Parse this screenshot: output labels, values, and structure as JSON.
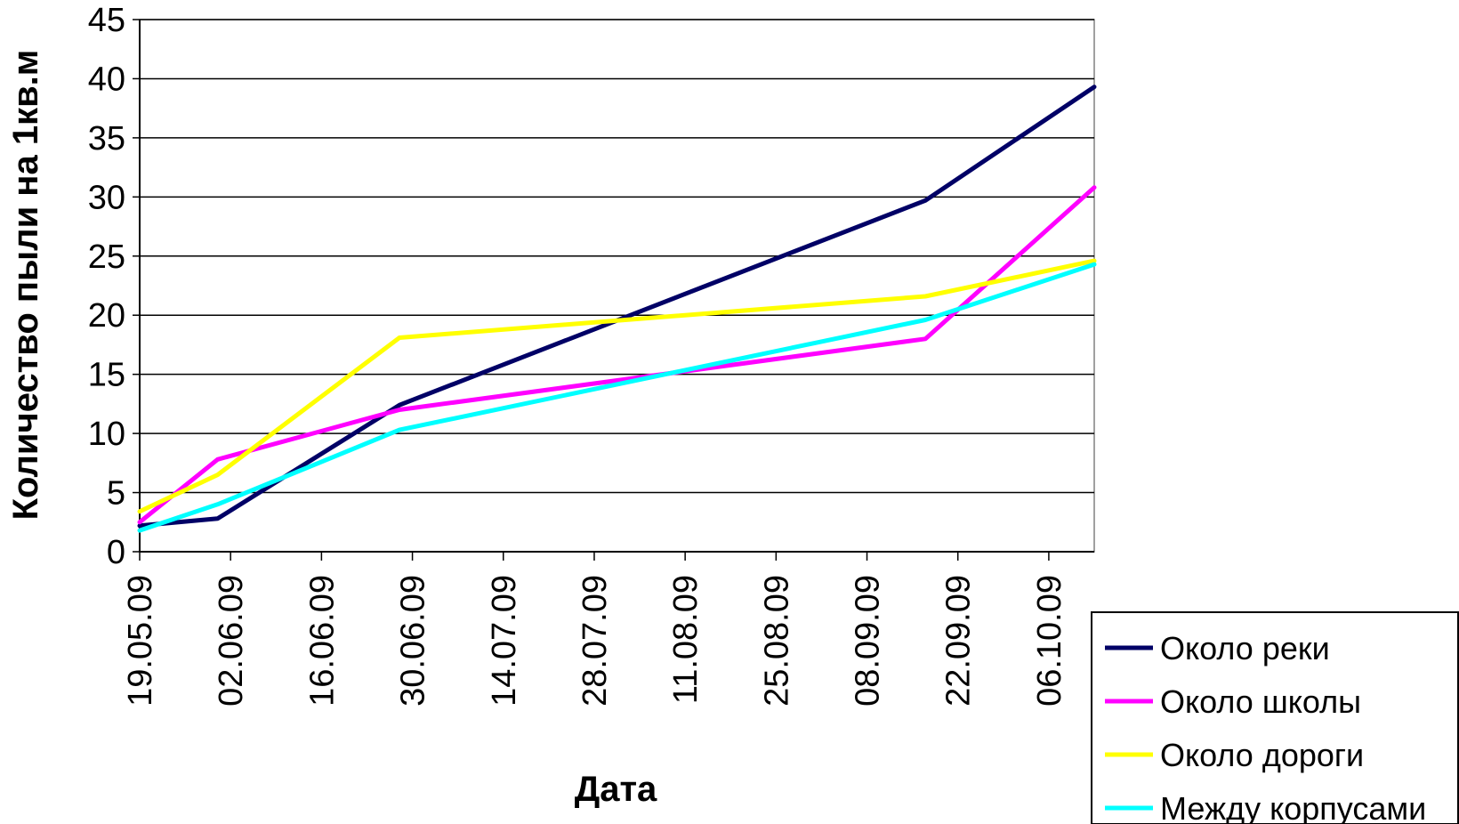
{
  "chart_data": {
    "type": "line",
    "xlabel": "Дата",
    "ylabel": "Количество пыли на 1кв.м",
    "x_ticks": [
      "19.05.09",
      "02.06.09",
      "16.06.09",
      "30.06.09",
      "14.07.09",
      "28.07.09",
      "11.08.09",
      "25.08.09",
      "08.09.09",
      "22.09.09",
      "06.10.09"
    ],
    "x_range": [
      "2009-05-19",
      "2009-10-13"
    ],
    "ylim": [
      0,
      45
    ],
    "y_ticks": [
      0,
      5,
      10,
      15,
      20,
      25,
      30,
      35,
      40,
      45
    ],
    "grid": "horizontal",
    "legend_position": "bottom-right",
    "series": [
      {
        "name": "Около реки",
        "color": "#000066",
        "points": [
          [
            "2009-05-19",
            2.2
          ],
          [
            "2009-05-31",
            2.8
          ],
          [
            "2009-06-28",
            12.4
          ],
          [
            "2009-09-17",
            29.7
          ],
          [
            "2009-10-13",
            39.3
          ]
        ]
      },
      {
        "name": "Около школы",
        "color": "#ff00ff",
        "points": [
          [
            "2009-05-19",
            2.5
          ],
          [
            "2009-05-31",
            7.8
          ],
          [
            "2009-06-28",
            12.0
          ],
          [
            "2009-09-17",
            18.0
          ],
          [
            "2009-10-13",
            30.8
          ]
        ]
      },
      {
        "name": "Около дороги",
        "color": "#ffff00",
        "points": [
          [
            "2009-05-19",
            3.4
          ],
          [
            "2009-05-31",
            6.5
          ],
          [
            "2009-06-28",
            18.1
          ],
          [
            "2009-09-17",
            21.6
          ],
          [
            "2009-10-13",
            24.6
          ]
        ]
      },
      {
        "name": "Между корпусами",
        "color": "#00ffff",
        "points": [
          [
            "2009-05-19",
            1.8
          ],
          [
            "2009-05-31",
            4.0
          ],
          [
            "2009-06-28",
            10.3
          ],
          [
            "2009-09-17",
            19.6
          ],
          [
            "2009-10-13",
            24.3
          ]
        ]
      }
    ]
  }
}
